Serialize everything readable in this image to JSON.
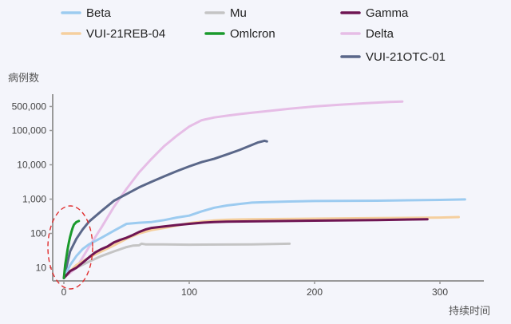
{
  "chart_data": {
    "type": "line",
    "ylabel": "病例数",
    "xlabel": "持续时间",
    "y_scale": "log",
    "ylim": [
      5,
      700000
    ],
    "xlim": [
      -10,
      325
    ],
    "x_ticks": [
      0,
      100,
      200,
      300
    ],
    "x_tick_labels": [
      "0",
      "100",
      "200",
      "300"
    ],
    "y_ticks": [
      10,
      100,
      1000,
      10000,
      100000,
      500000
    ],
    "y_tick_labels": [
      "10",
      "100",
      "1,000",
      "10,000",
      "100,000",
      "500,000"
    ],
    "grid": false,
    "legend_position": "top",
    "series": [
      {
        "name": "Beta",
        "color": "#9ccbf0",
        "x": [
          0,
          5,
          10,
          15,
          20,
          30,
          40,
          50,
          60,
          70,
          80,
          90,
          100,
          110,
          120,
          130,
          140,
          150,
          160,
          180,
          200,
          250,
          300,
          320
        ],
        "y": [
          5,
          12,
          22,
          35,
          48,
          75,
          120,
          190,
          205,
          215,
          245,
          290,
          330,
          440,
          560,
          650,
          720,
          790,
          810,
          850,
          880,
          900,
          950,
          980
        ]
      },
      {
        "name": "VUI-21REB-04",
        "color": "#f5cf9e",
        "x": [
          0,
          5,
          10,
          20,
          30,
          40,
          50,
          60,
          70,
          80,
          90,
          100,
          110,
          120,
          130,
          140,
          150,
          200,
          250,
          300,
          315
        ],
        "y": [
          5,
          8,
          12,
          20,
          30,
          45,
          70,
          100,
          125,
          145,
          170,
          200,
          220,
          240,
          250,
          255,
          260,
          270,
          280,
          290,
          300
        ]
      },
      {
        "name": "Mu",
        "color": "#c4c4c4",
        "x": [
          0,
          5,
          10,
          20,
          30,
          40,
          50,
          55,
          60,
          62,
          65,
          80,
          100,
          150,
          180
        ],
        "y": [
          5,
          8,
          10,
          15,
          22,
          30,
          40,
          44,
          45,
          50,
          48,
          48,
          47,
          48,
          50
        ]
      },
      {
        "name": "Omlcron",
        "color": "#1a9a2c",
        "x": [
          0,
          1,
          2,
          3,
          4,
          5,
          6,
          7,
          8,
          10,
          12
        ],
        "y": [
          5,
          12,
          20,
          35,
          55,
          80,
          110,
          145,
          180,
          215,
          230
        ]
      },
      {
        "name": "Gamma",
        "color": "#6e1553",
        "x": [
          0,
          5,
          10,
          15,
          20,
          25,
          30,
          35,
          40,
          45,
          50,
          55,
          60,
          65,
          70,
          80,
          90,
          100,
          110,
          120,
          130,
          150,
          200,
          250,
          290
        ],
        "y": [
          5,
          8,
          10,
          14,
          20,
          28,
          35,
          42,
          55,
          65,
          75,
          90,
          110,
          130,
          145,
          160,
          175,
          190,
          205,
          215,
          220,
          225,
          235,
          245,
          260
        ]
      },
      {
        "name": "Delta",
        "color": "#e6bde6",
        "x": [
          0,
          10,
          20,
          30,
          40,
          50,
          60,
          70,
          80,
          90,
          100,
          110,
          120,
          130,
          140,
          150,
          160,
          180,
          200,
          220,
          240,
          260,
          270
        ],
        "y": [
          5,
          10,
          40,
          150,
          600,
          2000,
          6000,
          15000,
          35000,
          70000,
          130000,
          200000,
          240000,
          270000,
          300000,
          330000,
          360000,
          430000,
          500000,
          560000,
          620000,
          680000,
          700000
        ]
      },
      {
        "name": "VUI-21OTC-01",
        "color": "#5a6789",
        "x": [
          0,
          5,
          10,
          15,
          20,
          30,
          40,
          50,
          60,
          70,
          80,
          90,
          100,
          110,
          120,
          130,
          140,
          150,
          155,
          160,
          162
        ],
        "y": [
          5,
          30,
          70,
          130,
          220,
          450,
          900,
          1400,
          2200,
          3200,
          4600,
          6500,
          9000,
          12000,
          15000,
          20000,
          27000,
          38000,
          45000,
          50000,
          48000
        ]
      }
    ]
  }
}
